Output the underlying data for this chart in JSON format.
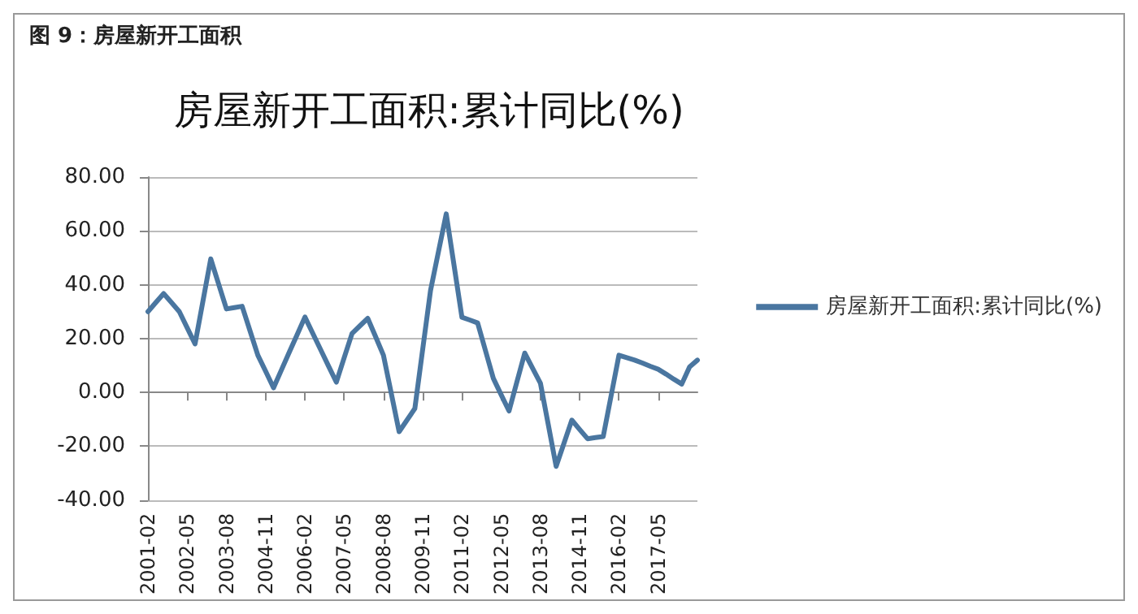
{
  "chart_data": {
    "type": "line",
    "title": "图 9：房屋新开工面积",
    "subtitle": "房屋新开工面积:累计同比(%)",
    "categories": [
      "2001-02",
      null,
      null,
      null,
      null,
      "2002-05",
      null,
      null,
      null,
      null,
      "2003-08",
      null,
      null,
      null,
      null,
      "2004-11",
      null,
      null,
      null,
      null,
      "2006-02",
      null,
      null,
      null,
      null,
      "2007-05",
      null,
      null,
      null,
      null,
      "2008-08",
      null,
      null,
      null,
      null,
      "2009-11",
      null,
      null,
      null,
      null,
      "2011-02",
      null,
      null,
      null,
      null,
      "2012-05",
      null,
      null,
      null,
      null,
      "2013-08",
      null,
      null,
      null,
      null,
      "2014-11",
      null,
      null,
      null,
      null,
      "2016-02",
      null,
      null,
      null,
      null,
      "2017-05",
      null,
      null,
      null,
      null,
      null
    ],
    "series": [
      {
        "name": "房屋新开工面积:累计同比(%)",
        "color": "#4a76a0",
        "values": [
          30,
          33.4,
          36.7,
          33.4,
          30,
          24,
          18,
          33.8,
          49.6,
          40.3,
          31,
          31.5,
          32,
          22.9,
          13.8,
          7.8,
          1.7,
          8.3,
          14.9,
          21.4,
          28,
          21.9,
          15.9,
          9.8,
          3.8,
          12.9,
          21.9,
          24.7,
          27.5,
          20.7,
          13.8,
          -0.4,
          -14.6,
          -10.3,
          -6,
          16,
          37.9,
          52.1,
          66.3,
          47.1,
          27.9,
          26.9,
          25.8,
          15.5,
          5.2,
          -0.9,
          -6.9,
          3.9,
          14.6,
          9,
          3.4,
          -12,
          -27.5,
          -18.9,
          -10.3,
          -13.8,
          -17.2,
          -16.8,
          -16.4,
          -1.3,
          13.8,
          12.9,
          12,
          10.9,
          9.7,
          8.6,
          6.8,
          4.9,
          3.1,
          9.5,
          12
        ]
      }
    ],
    "ylim": [
      -40,
      80
    ],
    "yticks": [
      {
        "value": -40,
        "label": "-40.00"
      },
      {
        "value": -20,
        "label": "-20.00"
      },
      {
        "value": 0,
        "label": "0.00"
      },
      {
        "value": 20,
        "label": "20.00"
      },
      {
        "value": 40,
        "label": "40.00"
      },
      {
        "value": 60,
        "label": "60.00"
      },
      {
        "value": 80,
        "label": "80.00"
      }
    ],
    "grid": "y",
    "legend": "right",
    "marker": "none",
    "line_style": "solid"
  }
}
